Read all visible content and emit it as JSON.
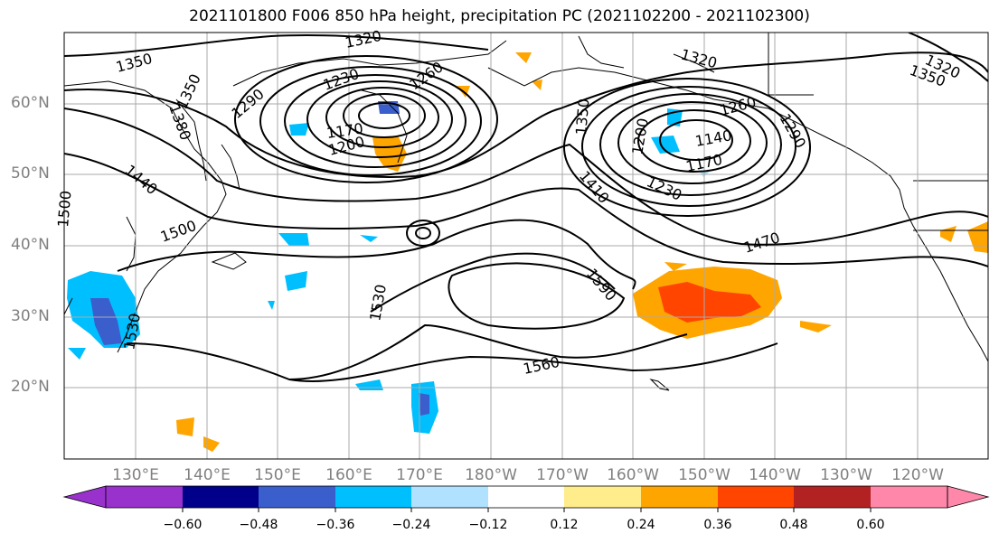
{
  "title": "2021101800 F006 850 hPa height, precipitation PC (2021102200 - 2021102300)",
  "lat_labels": [
    "60°N",
    "50°N",
    "40°N",
    "30°N",
    "20°N"
  ],
  "lon_labels": [
    "130°E",
    "140°E",
    "150°E",
    "160°E",
    "170°E",
    "180°W",
    "170°W",
    "160°W",
    "150°W",
    "140°W",
    "130°W",
    "120°W"
  ],
  "contour_labels": {
    "c1350a": "1350",
    "c1320a": "1320",
    "c1350b": "1350",
    "c1380": "1380",
    "c1290a": "1290",
    "c1230a": "1230",
    "c1260a": "1260",
    "c1170": "1170",
    "c1210": "1200",
    "c1440": "1440",
    "c1500a": "1500",
    "c1500b": "1500",
    "c1320b": "1320",
    "c1350c": "1350",
    "c1320c": "1320",
    "c1350d": "1350",
    "c1260b": "1260",
    "c1290b": "1290",
    "c1140": "1140",
    "c1170b": "1170",
    "c1230b": "1230",
    "c1410": "1410",
    "c1470": "1470",
    "c1590": "1590",
    "c1530a": "1530",
    "c1530b": "1530",
    "c1560": "1560",
    "c1200b": "1200"
  },
  "colorbar": {
    "ticks": [
      "−0.60",
      "−0.48",
      "−0.36",
      "−0.24",
      "−0.12",
      "0.12",
      "0.24",
      "0.36",
      "0.48",
      "0.60"
    ],
    "colors": [
      "#9932cc",
      "#00008b",
      "#3a5fcd",
      "#00bfff",
      "#b0e2ff",
      "#ffffff",
      "#ffec8b",
      "#ffa500",
      "#ff4500",
      "#b22222",
      "#ff88aa"
    ]
  }
}
